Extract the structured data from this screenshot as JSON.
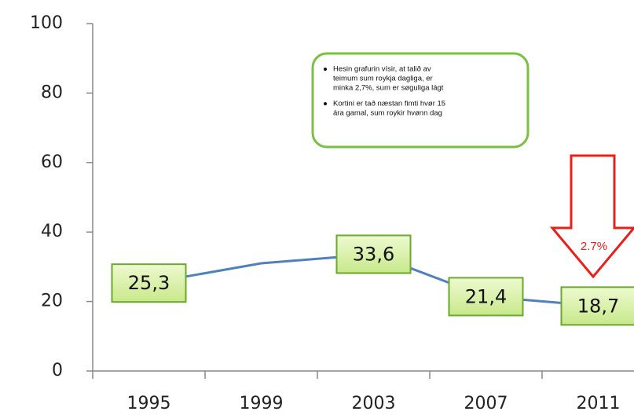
{
  "chart_data": {
    "type": "line",
    "categories": [
      "1995",
      "1999",
      "2003",
      "2007",
      "2011"
    ],
    "series": [
      {
        "color": "#4f81bd",
        "values": [
          25.3,
          31,
          33.6,
          21.4,
          18.7
        ],
        "value_labels": [
          "25,3",
          null,
          "33,6",
          "21,4",
          "18,7"
        ]
      }
    ],
    "ylim": [
      0,
      100
    ],
    "yticks": [
      0,
      20,
      40,
      60,
      80,
      100
    ],
    "annotations": {
      "note": [
        [
          "Hesin grafurin vísir, at talið av",
          "teimum sum roykja dagliga, er",
          "minka 2,7%, sum er søguliga lágt"
        ],
        [
          "Kortini er tað næstan fimti hvør 15",
          "ára gamal, sum roykir hvønn dag"
        ]
      ],
      "arrow_label": "2.7%"
    }
  }
}
